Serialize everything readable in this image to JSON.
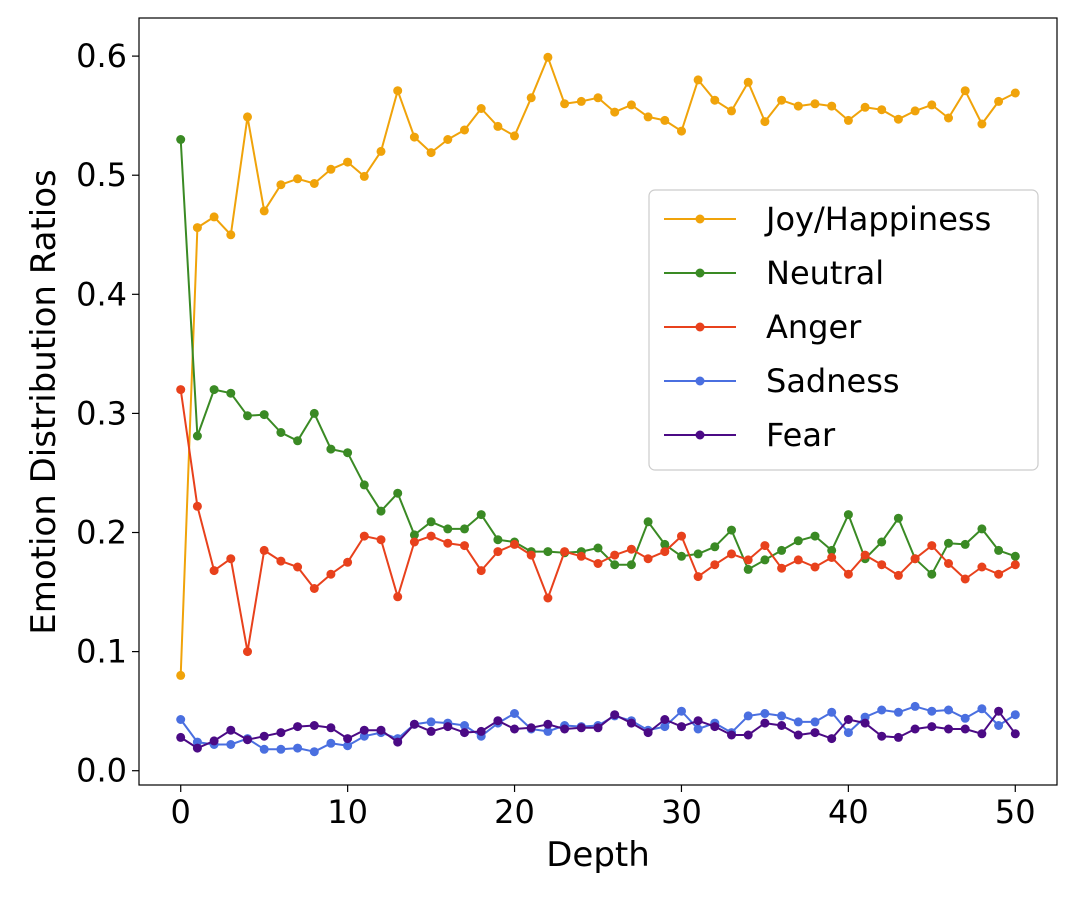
{
  "chart_data": {
    "type": "line",
    "title": "",
    "xlabel": "Depth",
    "ylabel": "Emotion Distribution Ratios",
    "xlim": [
      -2.5,
      52.5
    ],
    "ylim": [
      -0.012,
      0.632
    ],
    "xticks": [
      0,
      10,
      20,
      30,
      40,
      50
    ],
    "xtick_labels": [
      "0",
      "10",
      "20",
      "30",
      "40",
      "50"
    ],
    "yticks": [
      0.0,
      0.1,
      0.2,
      0.3,
      0.4,
      0.5,
      0.6
    ],
    "ytick_labels": [
      "0.0",
      "0.1",
      "0.2",
      "0.3",
      "0.4",
      "0.5",
      "0.6"
    ],
    "grid": false,
    "legend_position": "center-right",
    "x": [
      0,
      1,
      2,
      3,
      4,
      5,
      6,
      7,
      8,
      9,
      10,
      11,
      12,
      13,
      14,
      15,
      16,
      17,
      18,
      19,
      20,
      21,
      22,
      23,
      24,
      25,
      26,
      27,
      28,
      29,
      30,
      31,
      32,
      33,
      34,
      35,
      36,
      37,
      38,
      39,
      40,
      41,
      42,
      43,
      44,
      45,
      46,
      47,
      48,
      49,
      50
    ],
    "series": [
      {
        "name": "Joy/Happiness",
        "color": "#f0a30a",
        "values": [
          0.08,
          0.456,
          0.465,
          0.45,
          0.549,
          0.47,
          0.492,
          0.497,
          0.493,
          0.505,
          0.511,
          0.499,
          0.52,
          0.571,
          0.532,
          0.519,
          0.53,
          0.538,
          0.556,
          0.541,
          0.533,
          0.565,
          0.599,
          0.56,
          0.562,
          0.565,
          0.553,
          0.559,
          0.549,
          0.546,
          0.537,
          0.58,
          0.563,
          0.554,
          0.578,
          0.545,
          0.563,
          0.558,
          0.56,
          0.558,
          0.546,
          0.557,
          0.555,
          0.547,
          0.554,
          0.559,
          0.548,
          0.571,
          0.543,
          0.562,
          0.569
        ]
      },
      {
        "name": "Neutral",
        "color": "#3a8a24",
        "values": [
          0.53,
          0.281,
          0.32,
          0.317,
          0.298,
          0.299,
          0.284,
          0.277,
          0.3,
          0.27,
          0.267,
          0.24,
          0.218,
          0.233,
          0.198,
          0.209,
          0.203,
          0.203,
          0.215,
          0.194,
          0.192,
          0.184,
          0.184,
          0.183,
          0.184,
          0.187,
          0.173,
          0.173,
          0.209,
          0.19,
          0.18,
          0.182,
          0.188,
          0.202,
          0.169,
          0.177,
          0.185,
          0.193,
          0.197,
          0.185,
          0.215,
          0.178,
          0.192,
          0.212,
          0.178,
          0.165,
          0.191,
          0.19,
          0.203,
          0.185,
          0.18
        ]
      },
      {
        "name": "Anger",
        "color": "#e8411c",
        "values": [
          0.32,
          0.222,
          0.168,
          0.178,
          0.1,
          0.185,
          0.176,
          0.171,
          0.153,
          0.165,
          0.175,
          0.197,
          0.194,
          0.146,
          0.192,
          0.197,
          0.191,
          0.189,
          0.168,
          0.184,
          0.19,
          0.181,
          0.145,
          0.184,
          0.18,
          0.174,
          0.181,
          0.186,
          0.178,
          0.184,
          0.197,
          0.163,
          0.173,
          0.182,
          0.177,
          0.189,
          0.17,
          0.177,
          0.171,
          0.179,
          0.165,
          0.181,
          0.173,
          0.164,
          0.178,
          0.189,
          0.174,
          0.161,
          0.171,
          0.165,
          0.173
        ]
      },
      {
        "name": "Sadness",
        "color": "#4a6fe0",
        "values": [
          0.043,
          0.024,
          0.022,
          0.022,
          0.027,
          0.018,
          0.018,
          0.019,
          0.016,
          0.023,
          0.021,
          0.029,
          0.032,
          0.027,
          0.039,
          0.041,
          0.04,
          0.038,
          0.029,
          0.04,
          0.048,
          0.035,
          0.033,
          0.038,
          0.037,
          0.038,
          0.046,
          0.042,
          0.034,
          0.037,
          0.05,
          0.035,
          0.04,
          0.032,
          0.046,
          0.048,
          0.046,
          0.041,
          0.041,
          0.049,
          0.032,
          0.045,
          0.051,
          0.049,
          0.054,
          0.05,
          0.051,
          0.044,
          0.052,
          0.038,
          0.047
        ]
      },
      {
        "name": "Fear",
        "color": "#4b0a85",
        "values": [
          0.028,
          0.019,
          0.025,
          0.034,
          0.026,
          0.029,
          0.032,
          0.037,
          0.038,
          0.036,
          0.027,
          0.034,
          0.034,
          0.024,
          0.039,
          0.033,
          0.037,
          0.032,
          0.033,
          0.042,
          0.035,
          0.036,
          0.039,
          0.035,
          0.036,
          0.036,
          0.047,
          0.04,
          0.032,
          0.043,
          0.037,
          0.042,
          0.037,
          0.03,
          0.03,
          0.04,
          0.038,
          0.03,
          0.032,
          0.027,
          0.043,
          0.04,
          0.029,
          0.028,
          0.035,
          0.037,
          0.035,
          0.035,
          0.031,
          0.05,
          0.031
        ]
      }
    ]
  }
}
